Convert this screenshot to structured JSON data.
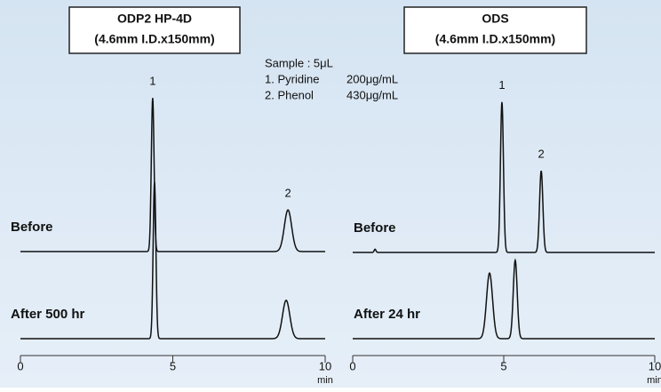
{
  "chart_data": [
    {
      "type": "chromatogram",
      "title": [
        "ODP2 HP-4D",
        "(4.6mm I.D.x150mm)"
      ],
      "xlabel": "min",
      "xlim": [
        0,
        10
      ],
      "xticks": [
        0,
        5,
        10
      ],
      "ylim": [
        0,
        100
      ],
      "traces": [
        {
          "name": "Before",
          "peaks": [
            {
              "label": "1",
              "x": 4.34,
              "height": 96,
              "sigma": 0.045
            },
            {
              "label": "2",
              "x": 8.78,
              "height": 26,
              "sigma": 0.12
            }
          ]
        },
        {
          "name": "After 500 hr",
          "peaks": [
            {
              "x": 4.4,
              "height": 98,
              "sigma": 0.045
            },
            {
              "x": 8.72,
              "height": 24,
              "sigma": 0.12
            }
          ]
        }
      ]
    },
    {
      "type": "chromatogram",
      "title": [
        "ODS",
        "(4.6mm I.D.x150mm)"
      ],
      "xlabel": "min",
      "xlim": [
        0,
        10
      ],
      "xticks": [
        0,
        5,
        10
      ],
      "ylim": [
        0,
        100
      ],
      "traces": [
        {
          "name": "Before",
          "peaks": [
            {
              "x": 0.74,
              "height": 2,
              "sigma": 0.03
            },
            {
              "label": "1",
              "x": 4.94,
              "height": 94,
              "sigma": 0.05
            },
            {
              "label": "2",
              "x": 6.24,
              "height": 51,
              "sigma": 0.055
            }
          ]
        },
        {
          "name": "After 24 hr",
          "peaks": [
            {
              "x": 4.53,
              "height": 41,
              "sigma": 0.1
            },
            {
              "x": 5.38,
              "height": 49,
              "sigma": 0.065
            }
          ]
        }
      ]
    }
  ],
  "sample": {
    "title": "Sample : 5μL",
    "rows": [
      [
        "1. Pyridine",
        "200μg/mL"
      ],
      [
        "2. Phenol",
        "430μg/mL"
      ]
    ]
  }
}
